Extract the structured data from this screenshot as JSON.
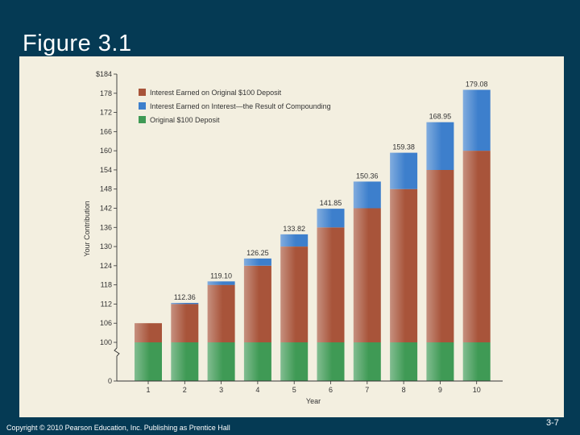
{
  "slide": {
    "title": "Figure 3.1",
    "copyright": "Copyright © 2010 Pearson Education, Inc. Publishing as Prentice Hall",
    "page_number": "3-7"
  },
  "chart_data": {
    "type": "bar",
    "stacked": true,
    "title": "",
    "xlabel": "Year",
    "ylabel": "Your Contribution",
    "categories": [
      "1",
      "2",
      "3",
      "4",
      "5",
      "6",
      "7",
      "8",
      "9",
      "10"
    ],
    "series": [
      {
        "name": "Original $100 Deposit",
        "color": "#3f9a55",
        "values": [
          100,
          100,
          100,
          100,
          100,
          100,
          100,
          100,
          100,
          100
        ]
      },
      {
        "name": "Interest Earned on Original $100 Deposit",
        "color": "#a8543a",
        "values": [
          6,
          12,
          18,
          24,
          30,
          36,
          42,
          48,
          54,
          60
        ]
      },
      {
        "name": "Interest Earned on Interest—the Result of Compounding",
        "color": "#3d7fcc",
        "values": [
          0,
          0.36,
          1.1,
          2.25,
          3.82,
          5.85,
          8.36,
          11.38,
          14.95,
          19.08
        ]
      }
    ],
    "totals": [
      106,
      112.36,
      119.1,
      126.25,
      133.82,
      141.85,
      150.36,
      159.38,
      168.95,
      179.08
    ],
    "total_labels": [
      "",
      "112.36",
      "119.10",
      "126.25",
      "133.82",
      "141.85",
      "150.36",
      "159.38",
      "168.95",
      "179.08"
    ],
    "y_ticks": [
      "0",
      "100",
      "106",
      "112",
      "118",
      "124",
      "130",
      "136",
      "142",
      "148",
      "154",
      "160",
      "166",
      "172",
      "178",
      "$184"
    ],
    "y_tick_values": [
      0,
      100,
      106,
      112,
      118,
      124,
      130,
      136,
      142,
      148,
      154,
      160,
      166,
      172,
      178,
      184
    ],
    "axis_break": true,
    "legend_order": [
      1,
      2,
      0
    ],
    "legend_position": "top-left",
    "grid": false
  }
}
